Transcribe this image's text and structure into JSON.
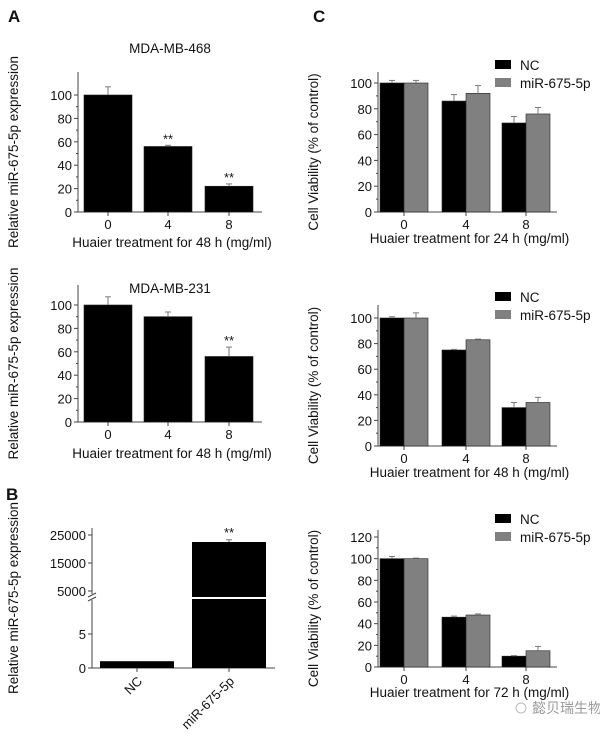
{
  "colors": {
    "NC": "#000000",
    "miR": "#808080",
    "error": "#7a7a7a"
  },
  "watermark": "懿贝瑞生物",
  "chart_data": [
    {
      "id": "A1",
      "panel_label": "A",
      "type": "bar",
      "title": "MDA-MB-468",
      "xlabel": "Huaier treatment for 48 h (mg/ml)",
      "ylabel": "Relative miR-675-5p expression",
      "categories": [
        "0",
        "4",
        "8"
      ],
      "yticks": [
        0,
        20,
        40,
        60,
        80,
        100
      ],
      "ylim": [
        0,
        115
      ],
      "series": [
        {
          "values": [
            100,
            56,
            22
          ],
          "errors": [
            7,
            1,
            2
          ]
        }
      ],
      "annotations": [
        "",
        "**",
        "**"
      ]
    },
    {
      "id": "A2",
      "type": "bar",
      "title": "MDA-MB-231",
      "xlabel": "Huaier treatment for 48 h (mg/ml)",
      "ylabel": "Relative miR-675-5p expression",
      "categories": [
        "0",
        "4",
        "8"
      ],
      "yticks": [
        0,
        20,
        40,
        60,
        80,
        100
      ],
      "ylim": [
        0,
        115
      ],
      "series": [
        {
          "values": [
            100,
            90,
            56
          ],
          "errors": [
            7,
            4,
            8
          ]
        }
      ],
      "annotations": [
        "",
        "",
        "**"
      ]
    },
    {
      "id": "B",
      "panel_label": "B",
      "type": "bar",
      "ylabel": "Relative miR-675-5p expression",
      "categories": [
        "NC",
        "miR-675-5p"
      ],
      "yticks_lower": [
        0,
        5
      ],
      "yticks_upper": [
        5000,
        15000,
        25000
      ],
      "axis_break": true,
      "series": [
        {
          "values": [
            1,
            22500
          ],
          "errors": [
            0,
            800
          ]
        }
      ],
      "annotations": [
        "",
        "**"
      ]
    },
    {
      "id": "C1",
      "panel_label": "C",
      "type": "bar",
      "xlabel": "Huaier treatment for 24 h (mg/ml)",
      "ylabel": "Cell Viability (% of control)",
      "categories": [
        "0",
        "4",
        "8"
      ],
      "yticks": [
        0,
        20,
        40,
        60,
        80,
        100
      ],
      "ylim": [
        0,
        110
      ],
      "legend": "top-right",
      "series": [
        {
          "name": "NC",
          "values": [
            100,
            86,
            69
          ],
          "errors": [
            2,
            5,
            5
          ]
        },
        {
          "name": "miR-675-5p",
          "values": [
            100,
            92,
            76
          ],
          "errors": [
            2,
            6,
            5
          ]
        }
      ]
    },
    {
      "id": "C2",
      "type": "bar",
      "xlabel": "Huaier treatment for 48 h (mg/ml)",
      "ylabel": "Cell Viability (% of control)",
      "categories": [
        "0",
        "4",
        "8"
      ],
      "yticks": [
        0,
        20,
        40,
        60,
        80,
        100
      ],
      "ylim": [
        0,
        110
      ],
      "legend": "top-right",
      "series": [
        {
          "name": "NC",
          "values": [
            100,
            75,
            30
          ],
          "errors": [
            1,
            0.5,
            4
          ]
        },
        {
          "name": "miR-675-5p",
          "values": [
            100,
            83,
            34
          ],
          "errors": [
            4,
            0.5,
            4
          ]
        }
      ]
    },
    {
      "id": "C3",
      "type": "bar",
      "xlabel": "Huaier treatment for 72 h (mg/ml)",
      "ylabel": "Cell Viability (% of control)",
      "categories": [
        "0",
        "4",
        "8"
      ],
      "yticks": [
        0,
        20,
        40,
        60,
        80,
        100,
        120
      ],
      "ylim": [
        0,
        125
      ],
      "legend": "top-right",
      "series": [
        {
          "name": "NC",
          "values": [
            100,
            46,
            10
          ],
          "errors": [
            2,
            1,
            0.5
          ]
        },
        {
          "name": "miR-675-5p",
          "values": [
            100,
            48,
            15
          ],
          "errors": [
            0.5,
            1,
            4
          ]
        }
      ]
    }
  ]
}
